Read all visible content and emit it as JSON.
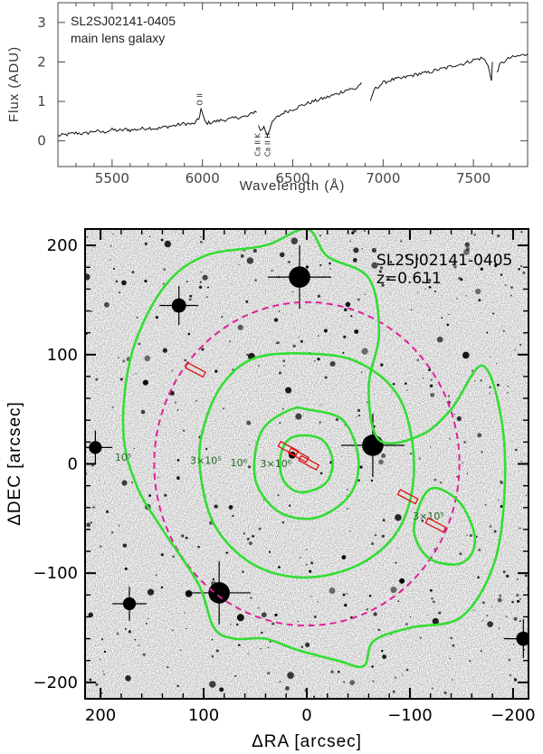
{
  "chart_data": [
    {
      "type": "line",
      "annotation_lines": [
        "SL2SJ02141-0405",
        "main lens galaxy"
      ],
      "xlabel": "Wavelength (Å)",
      "ylabel": "Flux (ADU)",
      "xlim": [
        5200,
        7800
      ],
      "ylim": [
        -0.65,
        3.5
      ],
      "x_ticks": [
        5500,
        6000,
        6500,
        7000,
        7500
      ],
      "y_ticks": [
        0,
        1,
        2,
        3
      ],
      "line_labels": [
        {
          "text": "O II",
          "x": 6000,
          "y": 1.05
        },
        {
          "text": "Ca II K",
          "x": 6320,
          "y": -0.1
        },
        {
          "text": "Ca II H",
          "x": 6375,
          "y": -0.1
        }
      ],
      "segments": [
        [
          [
            5200,
            0.13
          ],
          [
            5250,
            0.16
          ],
          [
            5300,
            0.2
          ],
          [
            5350,
            0.18
          ],
          [
            5400,
            0.25
          ],
          [
            5450,
            0.22
          ],
          [
            5500,
            0.28
          ],
          [
            5550,
            0.26
          ],
          [
            5580,
            0.3
          ]
        ],
        [
          [
            5580,
            0.3
          ],
          [
            5600,
            0.27
          ],
          [
            5650,
            0.3
          ],
          [
            5700,
            0.33
          ],
          [
            5750,
            0.31
          ],
          [
            5800,
            0.36
          ],
          [
            5850,
            0.39
          ],
          [
            5900,
            0.44
          ],
          [
            5950,
            0.42
          ],
          [
            5980,
            0.55
          ],
          [
            5992,
            0.82
          ],
          [
            6005,
            0.6
          ],
          [
            6020,
            0.45
          ],
          [
            6050,
            0.47
          ],
          [
            6100,
            0.52
          ],
          [
            6150,
            0.55
          ],
          [
            6200,
            0.6
          ],
          [
            6250,
            0.62
          ],
          [
            6290,
            0.75
          ],
          [
            6300,
            0.72
          ]
        ],
        [
          [
            6310,
            0.42
          ],
          [
            6320,
            0.25
          ],
          [
            6340,
            0.35
          ],
          [
            6360,
            0.15
          ],
          [
            6380,
            0.4
          ],
          [
            6400,
            0.55
          ],
          [
            6450,
            0.72
          ],
          [
            6500,
            0.8
          ],
          [
            6550,
            0.9
          ],
          [
            6600,
            0.98
          ],
          [
            6650,
            1.05
          ],
          [
            6700,
            1.12
          ],
          [
            6750,
            1.2
          ],
          [
            6800,
            1.3
          ],
          [
            6850,
            1.32
          ],
          [
            6880,
            1.48
          ]
        ],
        [
          [
            6930,
            0.97
          ],
          [
            6950,
            1.3
          ],
          [
            7000,
            1.47
          ],
          [
            7050,
            1.55
          ],
          [
            7100,
            1.58
          ],
          [
            7150,
            1.65
          ],
          [
            7200,
            1.7
          ],
          [
            7250,
            1.73
          ],
          [
            7300,
            1.8
          ],
          [
            7350,
            1.85
          ],
          [
            7400,
            1.92
          ],
          [
            7450,
            1.96
          ],
          [
            7500,
            2.05
          ],
          [
            7550,
            2.1
          ],
          [
            7580,
            1.95
          ],
          [
            7600,
            1.5
          ],
          [
            7605,
            2.0
          ]
        ],
        [
          [
            7630,
            1.75
          ],
          [
            7650,
            1.95
          ],
          [
            7700,
            2.1
          ],
          [
            7750,
            2.15
          ],
          [
            7800,
            2.2
          ]
        ]
      ]
    },
    {
      "type": "scatter",
      "annotation_lines": [
        "SL2SJ02141-0405",
        "z=0.611"
      ],
      "xlabel": "ΔRA [arcsec]",
      "ylabel": "ΔDEC [arcsec]",
      "xlim": [
        215,
        -215
      ],
      "ylim": [
        -215,
        215
      ],
      "x_ticks": [
        200,
        100,
        0,
        -100,
        -200
      ],
      "y_ticks": [
        200,
        100,
        0,
        -100,
        -200
      ],
      "x_tick_labels": [
        "200",
        "100",
        "0",
        "−100",
        "−200"
      ],
      "y_tick_labels": [
        "200",
        "100",
        "0",
        "−100",
        "−200"
      ],
      "colors": {
        "contour": "#33dd33",
        "circle": "#dd2299",
        "slit": "#dd1111",
        "contour_label": "#226622"
      },
      "circle": {
        "center": [
          0,
          0
        ],
        "radius": 148
      },
      "contours": [
        {
          "label": "10⁵",
          "label_pos": [
            178,
            3
          ],
          "points": [
            [
              -70,
              22
            ],
            [
              -110,
              26
            ],
            [
              -140,
              50
            ],
            [
              -170,
              90
            ],
            [
              -188,
              45
            ],
            [
              -192,
              -20
            ],
            [
              -182,
              -90
            ],
            [
              -150,
              -140
            ],
            [
              -100,
              -150
            ],
            [
              -65,
              -162
            ],
            [
              -55,
              -185
            ],
            [
              -30,
              -180
            ],
            [
              10,
              -170
            ],
            [
              40,
              -160
            ],
            [
              70,
              -160
            ],
            [
              90,
              -150
            ],
            [
              105,
              -110
            ],
            [
              140,
              -60
            ],
            [
              165,
              -20
            ],
            [
              178,
              30
            ],
            [
              170,
              100
            ],
            [
              140,
              160
            ],
            [
              100,
              190
            ],
            [
              40,
              200
            ],
            [
              0,
              215
            ],
            [
              -20,
              190
            ],
            [
              -60,
              170
            ],
            [
              -70,
              120
            ],
            [
              -60,
              70
            ],
            [
              -70,
              22
            ]
          ]
        },
        {
          "label": "3×10⁵",
          "label_pos": [
            98,
            0
          ],
          "points": [
            [
              0,
              101
            ],
            [
              -50,
              93
            ],
            [
              -90,
              60
            ],
            [
              -104,
              0
            ],
            [
              -92,
              -55
            ],
            [
              -55,
              -90
            ],
            [
              0,
              -104
            ],
            [
              52,
              -92
            ],
            [
              90,
              -55
            ],
            [
              104,
              0
            ],
            [
              98,
              40
            ],
            [
              80,
              75
            ],
            [
              50,
              97
            ],
            [
              0,
              101
            ]
          ]
        },
        {
          "label": "3×10⁵",
          "label_pos": [
            -118,
            -51
          ],
          "points": [
            [
              -112,
              -32
            ],
            [
              -125,
              -22
            ],
            [
              -148,
              -35
            ],
            [
              -162,
              -62
            ],
            [
              -160,
              -82
            ],
            [
              -145,
              -92
            ],
            [
              -118,
              -86
            ],
            [
              -104,
              -62
            ],
            [
              -112,
              -32
            ]
          ]
        },
        {
          "label": "10⁶",
          "label_pos": [
            66,
            -2
          ],
          "points": [
            [
              0,
              50
            ],
            [
              -35,
              40
            ],
            [
              -50,
              5
            ],
            [
              -42,
              -28
            ],
            [
              -10,
              -49
            ],
            [
              25,
              -45
            ],
            [
              48,
              -20
            ],
            [
              50,
              10
            ],
            [
              40,
              35
            ],
            [
              15,
              50
            ],
            [
              0,
              50
            ]
          ]
        },
        {
          "label": "3×10⁶",
          "label_pos": [
            30,
            -3
          ],
          "points": [
            [
              6,
              26
            ],
            [
              -15,
              22
            ],
            [
              -25,
              3
            ],
            [
              -18,
              -18
            ],
            [
              6,
              -26
            ],
            [
              22,
              -16
            ],
            [
              26,
              3
            ],
            [
              20,
              20
            ],
            [
              6,
              26
            ]
          ]
        }
      ],
      "slits": [
        {
          "x": 108,
          "y": 86,
          "angle_deg": 28
        },
        {
          "x": 18,
          "y": 14,
          "angle_deg": 28
        },
        {
          "x": 8,
          "y": 8,
          "angle_deg": 28
        },
        {
          "x": -2,
          "y": 1,
          "angle_deg": 28
        },
        {
          "x": -98,
          "y": -30,
          "angle_deg": 28
        },
        {
          "x": -125,
          "y": -56,
          "angle_deg": 28
        }
      ],
      "bright_stars": [
        {
          "x": 7,
          "y": 171,
          "mag": 3
        },
        {
          "x": 124,
          "y": 145,
          "mag": 1.5
        },
        {
          "x": -64,
          "y": 17,
          "mag": 3
        },
        {
          "x": 85,
          "y": -118,
          "mag": 3
        },
        {
          "x": 205,
          "y": 15,
          "mag": 1.2
        },
        {
          "x": 172,
          "y": -128,
          "mag": 1.2
        },
        {
          "x": -210,
          "y": -160,
          "mag": 1.5
        }
      ]
    }
  ]
}
